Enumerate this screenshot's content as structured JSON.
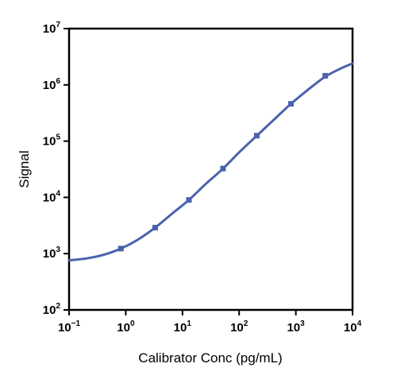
{
  "chart_data": {
    "type": "scatter",
    "title": "",
    "xlabel": "Calibrator Conc (pg/mL)",
    "ylabel": "Signal",
    "x_scale": "log",
    "y_scale": "log",
    "xlim": [
      0.1,
      10000
    ],
    "ylim": [
      100,
      10000000
    ],
    "x_ticks": [
      {
        "base": "10",
        "exp": "−1",
        "value": 0.1
      },
      {
        "base": "10",
        "exp": "0",
        "value": 1
      },
      {
        "base": "10",
        "exp": "1",
        "value": 10
      },
      {
        "base": "10",
        "exp": "2",
        "value": 100
      },
      {
        "base": "10",
        "exp": "3",
        "value": 1000
      },
      {
        "base": "10",
        "exp": "4",
        "value": 10000
      }
    ],
    "y_ticks": [
      {
        "base": "10",
        "exp": "2",
        "value": 100
      },
      {
        "base": "10",
        "exp": "3",
        "value": 1000
      },
      {
        "base": "10",
        "exp": "4",
        "value": 10000
      },
      {
        "base": "10",
        "exp": "5",
        "value": 100000
      },
      {
        "base": "10",
        "exp": "6",
        "value": 1000000
      },
      {
        "base": "10",
        "exp": "7",
        "value": 10000000
      }
    ],
    "grid": false,
    "legend": "none",
    "series": [
      {
        "kind": "points",
        "marker": "square",
        "color": "#4a62ab",
        "x": [
          0.82,
          3.3,
          13,
          52,
          205,
          820,
          3300
        ],
        "y": [
          1230,
          2900,
          9000,
          32500,
          125000,
          460000,
          1450000
        ]
      },
      {
        "kind": "fit-curve",
        "color": "#4a62ab",
        "x": [
          0.1,
          0.2,
          0.4,
          0.82,
          1.6,
          3.3,
          6.5,
          13,
          26,
          52,
          103,
          205,
          410,
          820,
          1640,
          3300,
          6500,
          10000
        ],
        "y": [
          760,
          820,
          950,
          1230,
          1750,
          2900,
          5100,
          9000,
          17500,
          32500,
          65000,
          125000,
          240000,
          460000,
          820000,
          1400000,
          2000000,
          2400000
        ]
      }
    ]
  }
}
